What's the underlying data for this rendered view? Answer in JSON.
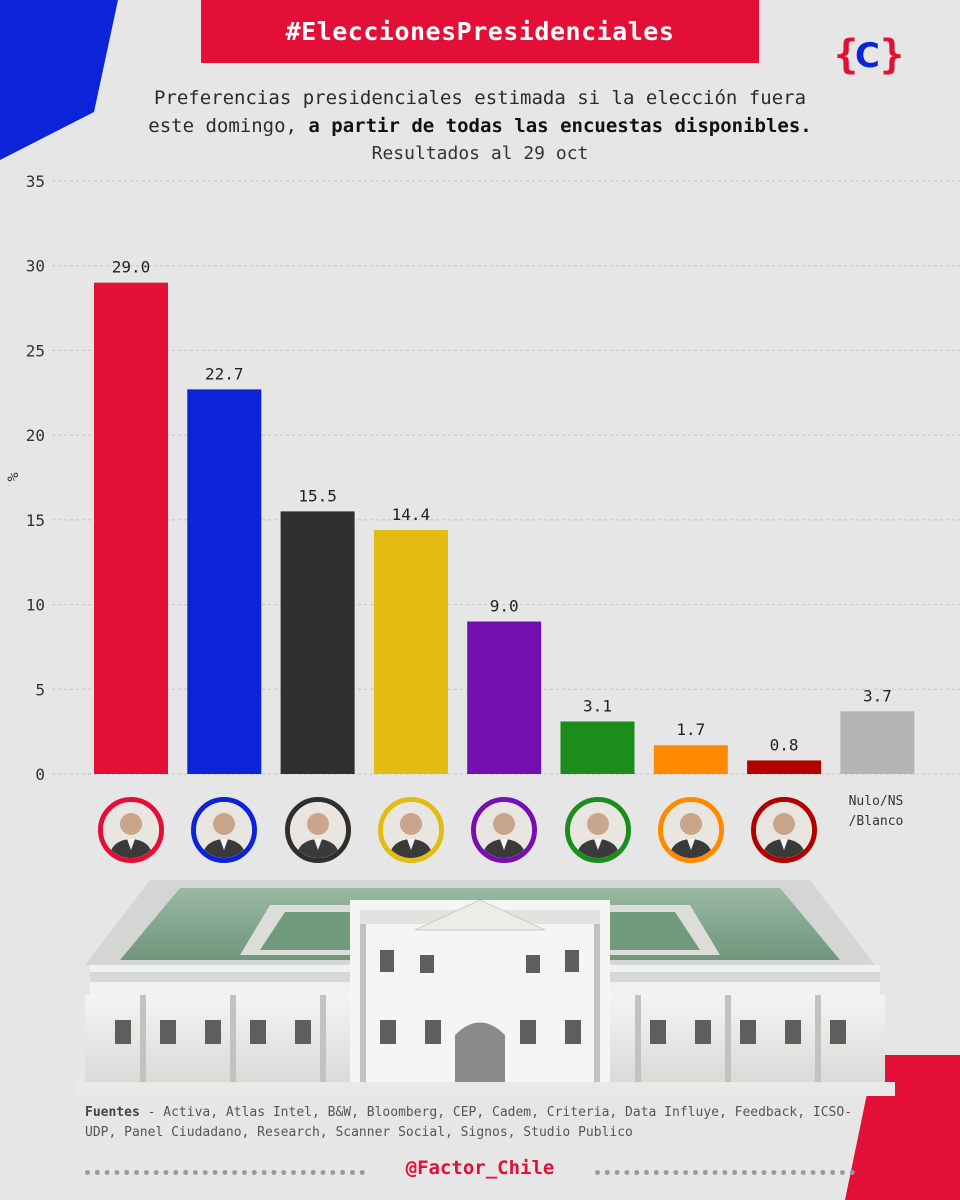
{
  "header": {
    "hashtag": "#EleccionesPresidenciales",
    "logo_text": "{C}"
  },
  "subtitle": {
    "line1": "Preferencias presidenciales estimada si la elección fuera",
    "line2_plain": "este domingo, ",
    "line2_bold": "a partir de todas las encuestas disponibles.",
    "date_note": "Resultados al 29 oct"
  },
  "chart_data": {
    "type": "bar",
    "title": "Preferencias presidenciales estimada si la elección fuera este domingo, a partir de todas las encuestas disponibles.",
    "subtitle": "Resultados al 29 oct",
    "ylabel": "%",
    "xlabel": "",
    "ylim": [
      0,
      35
    ],
    "yticks": [
      0,
      5,
      10,
      15,
      20,
      25,
      30,
      35
    ],
    "grid": true,
    "categories": [
      "",
      "",
      "",
      "",
      "",
      "",
      "",
      "",
      "Nulo/NS /Blanco"
    ],
    "values": [
      29.0,
      22.7,
      15.5,
      14.4,
      9.0,
      3.1,
      1.7,
      0.8,
      3.7
    ],
    "value_labels": [
      "29.0",
      "22.7",
      "15.5",
      "14.4",
      "9.0",
      "3.1",
      "1.7",
      "0.8",
      "3.7"
    ],
    "colors": [
      "#e30f37",
      "#0b24d8",
      "#2f2f2f",
      "#e2bc10",
      "#7510b0",
      "#1c8c1c",
      "#ff8a00",
      "#b00000",
      "#b5b5b5"
    ]
  },
  "avatars": [
    {
      "icon": "candidate-portrait-icon",
      "ring": "#e30f37"
    },
    {
      "icon": "candidate-portrait-icon",
      "ring": "#0b24d8"
    },
    {
      "icon": "candidate-portrait-icon",
      "ring": "#2f2f2f"
    },
    {
      "icon": "candidate-portrait-icon",
      "ring": "#e2bc10"
    },
    {
      "icon": "candidate-portrait-icon",
      "ring": "#7510b0"
    },
    {
      "icon": "candidate-portrait-icon",
      "ring": "#1c8c1c"
    },
    {
      "icon": "candidate-portrait-icon",
      "ring": "#ff8a00"
    },
    {
      "icon": "candidate-portrait-icon",
      "ring": "#b00000"
    }
  ],
  "nulo_label": {
    "line1": "Nulo/NS",
    "line2": "/Blanco"
  },
  "footer": {
    "sources_label": "Fuentes",
    "sources_text": " - Activa, Atlas Intel, B&W, Bloomberg, CEP, Cadem, Criteria, Data Influye, Feedback, ICSO-UDP, Panel Ciudadano, Research, Scanner Social, Signos, Studio Publico",
    "handle": "@Factor_Chile"
  }
}
